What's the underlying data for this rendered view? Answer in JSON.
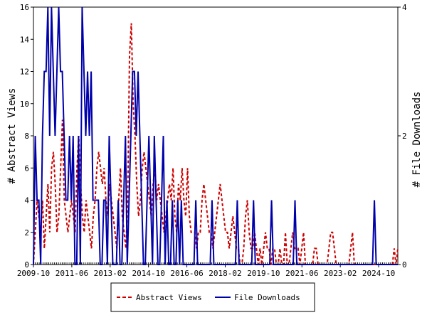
{
  "chart_data": {
    "type": "line",
    "ylabel_left": "# Abstract Views",
    "ylabel_right": "# File Downloads",
    "x_ticks": [
      "2009-10",
      "2011-06",
      "2013-02",
      "2014-10",
      "2016-06",
      "2018-02",
      "2019-10",
      "2021-06",
      "2023-02",
      "2024-10"
    ],
    "x_range": [
      "2009-10",
      "2025-08"
    ],
    "y_left_ticks": [
      "0",
      "2",
      "4",
      "6",
      "8",
      "10",
      "12",
      "14",
      "16"
    ],
    "y_left_range": [
      0,
      16
    ],
    "y_right_ticks": [
      "0",
      "2",
      "4"
    ],
    "y_right_range": [
      0,
      4
    ],
    "legend_position": "bottom",
    "series": [
      {
        "name": "Abstract Views",
        "axis": "left",
        "color": "#cc0000",
        "style": "dashed",
        "values": [
          0,
          2,
          4,
          3,
          2,
          4,
          1,
          3,
          5,
          2,
          6,
          7,
          5,
          2,
          3,
          6,
          9,
          4,
          3,
          2,
          3,
          4,
          3,
          2,
          6,
          8,
          5,
          3,
          2,
          4,
          3,
          2,
          1,
          3,
          4,
          6,
          7,
          6,
          5,
          6,
          4,
          3,
          5,
          4,
          3,
          2,
          1,
          4,
          6,
          3,
          2,
          1,
          4,
          13,
          15,
          10,
          8,
          5,
          3,
          4,
          6,
          7,
          6,
          5,
          4,
          3,
          5,
          6,
          4,
          5,
          4,
          3,
          2,
          3,
          4,
          5,
          4,
          6,
          3,
          2,
          5,
          4,
          6,
          4,
          3,
          6,
          3,
          2,
          2,
          2,
          1,
          2,
          2,
          4,
          5,
          4,
          3,
          2,
          2,
          1,
          2,
          3,
          4,
          5,
          4,
          3,
          2,
          2,
          1,
          2,
          3,
          2,
          1,
          1,
          0,
          0,
          1,
          3,
          4,
          2,
          1,
          1,
          2,
          1,
          0,
          1,
          0,
          1,
          2,
          1,
          1,
          0,
          1,
          1,
          0,
          0,
          1,
          0,
          0,
          2,
          0,
          0,
          1,
          2,
          1,
          1,
          1,
          0,
          1,
          2,
          0,
          0,
          0,
          0,
          0,
          1,
          1,
          0,
          0,
          0,
          0,
          0,
          0,
          1,
          2,
          2,
          1,
          0,
          0,
          0,
          0,
          0,
          0,
          0,
          0,
          1,
          2,
          0,
          0,
          0,
          0,
          0,
          0,
          0,
          0,
          0,
          0,
          0,
          0,
          0,
          0,
          0,
          0,
          0,
          0,
          0,
          0,
          0,
          0,
          1,
          0,
          1
        ]
      },
      {
        "name": "File Downloads",
        "axis": "right",
        "color": "#0000aa",
        "style": "solid",
        "values": [
          0,
          2,
          1,
          1,
          0,
          2,
          3,
          3,
          4,
          2,
          4,
          3,
          2,
          3,
          4,
          3,
          3,
          2,
          1,
          1,
          2,
          1,
          2,
          0,
          0,
          2,
          0,
          4,
          3,
          2,
          3,
          2,
          3,
          1,
          1,
          1,
          1,
          0,
          0,
          1,
          1,
          0,
          2,
          1,
          0,
          0,
          0,
          1,
          0,
          0,
          1,
          2,
          0,
          1,
          2,
          3,
          3,
          2,
          3,
          2,
          1,
          0,
          0,
          1,
          2,
          1,
          0,
          2,
          1,
          0,
          0,
          1,
          2,
          0,
          1,
          0,
          0,
          1,
          0,
          0,
          1,
          0,
          1,
          0,
          0,
          0,
          0,
          0,
          0,
          0,
          1,
          0,
          0,
          0,
          0,
          0,
          0,
          0,
          0,
          1,
          0,
          0,
          0,
          0,
          0,
          0,
          0,
          0,
          0,
          0,
          0,
          0,
          0,
          1,
          0,
          0,
          0,
          0,
          0,
          0,
          0,
          0,
          1,
          0,
          0,
          0,
          0,
          0,
          0,
          0,
          0,
          0,
          1,
          0,
          0,
          0,
          0,
          0,
          0,
          0,
          0,
          0,
          0,
          0,
          0,
          1,
          0,
          0,
          0,
          0,
          0,
          0,
          0,
          0,
          0,
          0,
          0,
          0,
          0,
          0,
          0,
          0,
          0,
          0,
          0,
          0,
          0,
          0,
          0,
          0,
          0,
          0,
          0,
          0,
          0,
          0,
          0,
          0,
          0,
          0,
          0,
          0,
          0,
          0,
          0,
          0,
          0,
          0,
          0,
          1,
          0,
          0,
          0,
          0,
          0,
          0,
          0,
          0,
          0,
          0,
          0,
          0,
          0
        ]
      }
    ]
  }
}
